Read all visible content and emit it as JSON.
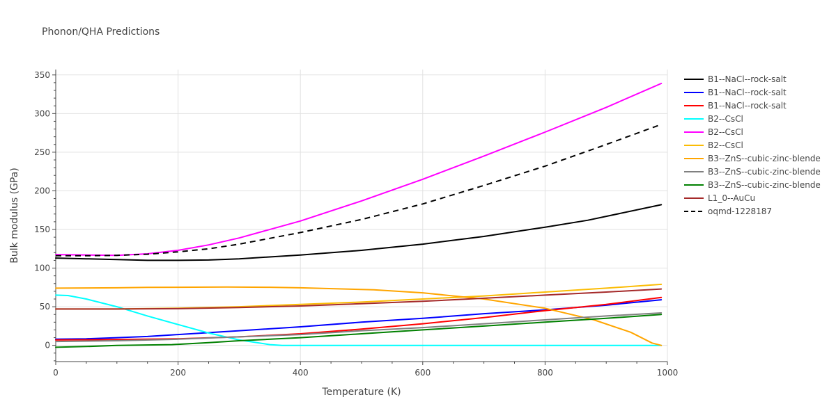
{
  "chart_data": {
    "type": "line",
    "title": "Phonon/QHA Predictions",
    "xlabel": "Temperature (K)",
    "ylabel": "Bulk modulus (GPa)",
    "xlim": [
      0,
      1000
    ],
    "ylim": [
      -21,
      357
    ],
    "xticks": [
      0,
      200,
      400,
      600,
      800,
      1000
    ],
    "yticks": [
      0,
      50,
      100,
      150,
      200,
      250,
      300,
      350
    ],
    "grid": true,
    "legend_position": "right",
    "series": [
      {
        "name": "B1--NaCl--rock-salt",
        "color": "#000000",
        "dash": "solid",
        "x": [
          0,
          50,
          100,
          150,
          200,
          250,
          300,
          400,
          500,
          600,
          700,
          800,
          870,
          990
        ],
        "y": [
          113,
          112,
          111,
          110,
          110,
          110.5,
          112,
          117,
          123,
          131,
          141,
          153,
          162,
          182
        ]
      },
      {
        "name": "B1--NaCl--rock-salt",
        "color": "#0000ff",
        "dash": "solid",
        "x": [
          0,
          50,
          100,
          150,
          200,
          300,
          400,
          500,
          600,
          700,
          800,
          900,
          990
        ],
        "y": [
          8,
          8.5,
          10,
          11.5,
          14,
          19,
          24,
          30,
          35,
          41,
          46,
          52,
          59
        ]
      },
      {
        "name": "B1--NaCl--rock-salt",
        "color": "#ff0000",
        "dash": "solid",
        "x": [
          0,
          100,
          200,
          300,
          400,
          500,
          600,
          700,
          800,
          900,
          990
        ],
        "y": [
          7,
          7.5,
          8.5,
          11,
          15,
          21,
          28,
          36,
          45,
          53,
          62
        ]
      },
      {
        "name": "B2--CsCl",
        "color": "#00ffff",
        "dash": "solid",
        "x": [
          0,
          20,
          50,
          100,
          150,
          200,
          250,
          300,
          350,
          370,
          400,
          600,
          800,
          990
        ],
        "y": [
          65,
          64.5,
          60,
          50,
          38,
          27,
          16,
          7,
          1,
          0,
          0,
          0,
          0,
          0
        ]
      },
      {
        "name": "B2--CsCl",
        "color": "#ff00ff",
        "dash": "solid",
        "x": [
          0,
          100,
          150,
          200,
          250,
          300,
          400,
          500,
          600,
          700,
          800,
          900,
          990
        ],
        "y": [
          117.5,
          116.5,
          118.5,
          123,
          130,
          139,
          161,
          187,
          215,
          245,
          276,
          308,
          339
        ]
      },
      {
        "name": "B2--CsCl",
        "color": "#fbbc04",
        "dash": "solid",
        "x": [
          0,
          100,
          200,
          300,
          400,
          500,
          600,
          700,
          800,
          900,
          990
        ],
        "y": [
          47,
          47,
          48,
          50,
          53,
          56,
          60,
          64,
          69,
          74,
          79
        ]
      },
      {
        "name": "B3--ZnS--cubic-zinc-blende",
        "color": "#ffa500",
        "dash": "solid",
        "x": [
          0,
          100,
          150,
          200,
          280,
          350,
          400,
          520,
          600,
          700,
          800,
          880,
          940,
          975,
          990
        ],
        "y": [
          74,
          74.5,
          75,
          75.2,
          75.5,
          75.2,
          74.5,
          72,
          68,
          60,
          48,
          33,
          17,
          3,
          0
        ]
      },
      {
        "name": "B3--ZnS--cubic-zinc-blende",
        "color": "#808080",
        "dash": "solid",
        "x": [
          0,
          100,
          200,
          300,
          400,
          500,
          600,
          700,
          800,
          900,
          990
        ],
        "y": [
          5,
          6,
          8,
          11,
          14,
          19,
          23,
          28,
          33,
          38,
          42
        ]
      },
      {
        "name": "B3--ZnS--cubic-zinc-blende",
        "color": "#008000",
        "dash": "solid",
        "x": [
          0,
          50,
          100,
          150,
          190,
          250,
          300,
          400,
          500,
          600,
          700,
          800,
          900,
          990
        ],
        "y": [
          -2.5,
          -1.5,
          0,
          0.5,
          1,
          3.5,
          6,
          10,
          15,
          20,
          25,
          30,
          35,
          40
        ]
      },
      {
        "name": "L1_0--AuCu",
        "color": "#a52a2a",
        "dash": "solid",
        "x": [
          0,
          100,
          200,
          300,
          400,
          500,
          600,
          700,
          800,
          900,
          990
        ],
        "y": [
          47,
          47,
          47.5,
          49,
          51,
          54,
          57,
          61,
          65,
          69,
          73
        ]
      },
      {
        "name": "oqmd-1228187",
        "color": "#000000",
        "dash": "dash",
        "x": [
          0,
          50,
          100,
          150,
          200,
          250,
          300,
          400,
          500,
          600,
          700,
          800,
          900,
          990
        ],
        "y": [
          116,
          116,
          116.5,
          118,
          121,
          125,
          131,
          146,
          163,
          183,
          207,
          232,
          260,
          286
        ]
      }
    ]
  }
}
